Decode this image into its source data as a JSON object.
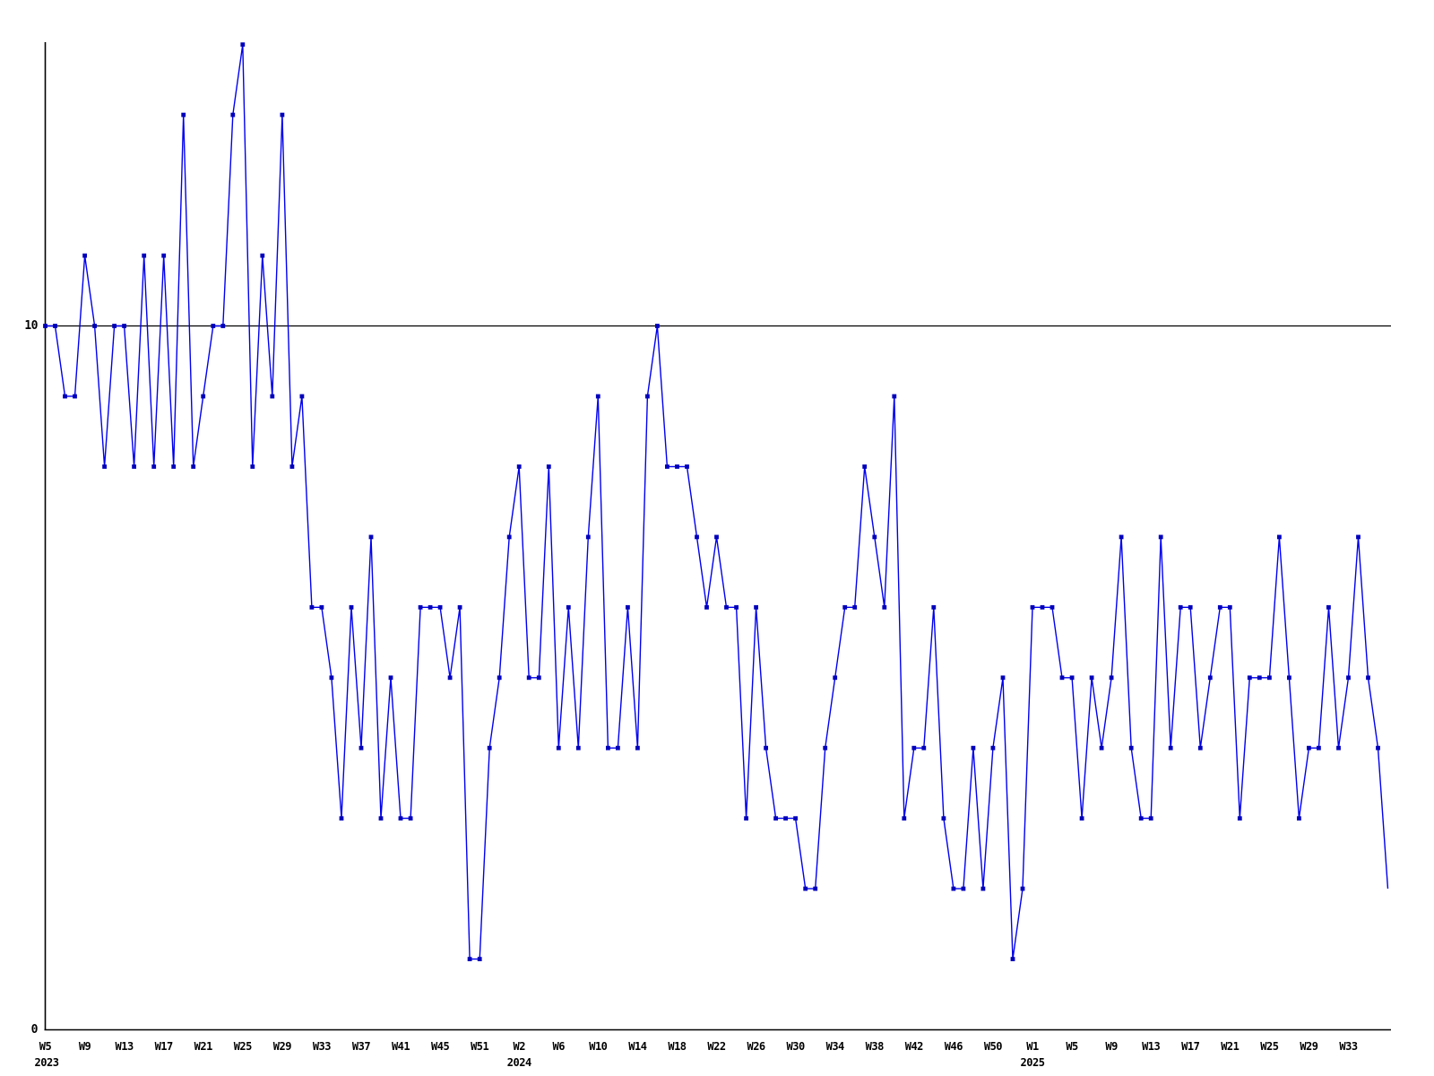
{
  "chart_data": {
    "type": "line",
    "title": "",
    "legend": "none",
    "grid": "off",
    "colors": {
      "line": "#0000ee",
      "marker": "#0000bb",
      "axis": "#000000",
      "background": "#ffffff"
    },
    "y_axis": {
      "ticks": [
        {
          "label": "10",
          "value": 10
        },
        {
          "label": "0",
          "value": 0
        }
      ],
      "reference_line_value": 10,
      "ylim": [
        0,
        14.3
      ]
    },
    "x_axis": {
      "points_per_tick": 4,
      "tick_labels": [
        "W5",
        "W9",
        "W13",
        "W17",
        "W21",
        "W25",
        "W29",
        "W33",
        "W37",
        "W41",
        "W45",
        "W51",
        "W2",
        "W6",
        "W10",
        "W14",
        "W18",
        "W22",
        "W26",
        "W30",
        "W34",
        "W38",
        "W42",
        "W46",
        "W50",
        "W1",
        "W5",
        "W9",
        "W13",
        "W17",
        "W21",
        "W25",
        "W29",
        "W33"
      ],
      "year_labels": [
        {
          "text": "2023",
          "tick_index": 0
        },
        {
          "text": "2024",
          "tick_index": 12
        },
        {
          "text": "2025",
          "tick_index": 25
        }
      ]
    },
    "values": [
      10,
      10,
      9,
      9,
      11,
      10,
      8,
      10,
      10,
      8,
      11,
      8,
      11,
      8,
      13,
      8,
      9,
      10,
      10,
      13,
      14,
      8,
      11,
      9,
      13,
      8,
      9,
      6,
      6,
      5,
      3,
      6,
      4,
      7,
      3,
      5,
      3,
      3,
      6,
      6,
      6,
      5,
      6,
      1,
      1,
      4,
      5,
      7,
      8,
      5,
      5,
      8,
      4,
      6,
      4,
      7,
      9,
      4,
      4,
      6,
      4,
      9,
      10,
      8,
      8,
      8,
      7,
      6,
      7,
      6,
      6,
      3,
      6,
      4,
      3,
      3,
      3,
      2,
      2,
      4,
      5,
      6,
      6,
      8,
      7,
      6,
      9,
      3,
      4,
      4,
      6,
      3,
      2,
      2,
      4,
      2,
      4,
      5,
      1,
      2,
      6,
      6,
      6,
      5,
      5,
      3,
      5,
      4,
      5,
      7,
      4,
      3,
      3,
      7,
      4,
      6,
      6,
      4,
      5,
      6,
      6,
      3,
      5,
      5,
      5,
      7,
      5,
      3,
      4,
      4,
      6,
      4,
      5,
      7,
      5,
      4,
      2
    ],
    "last_point_has_marker": false
  }
}
